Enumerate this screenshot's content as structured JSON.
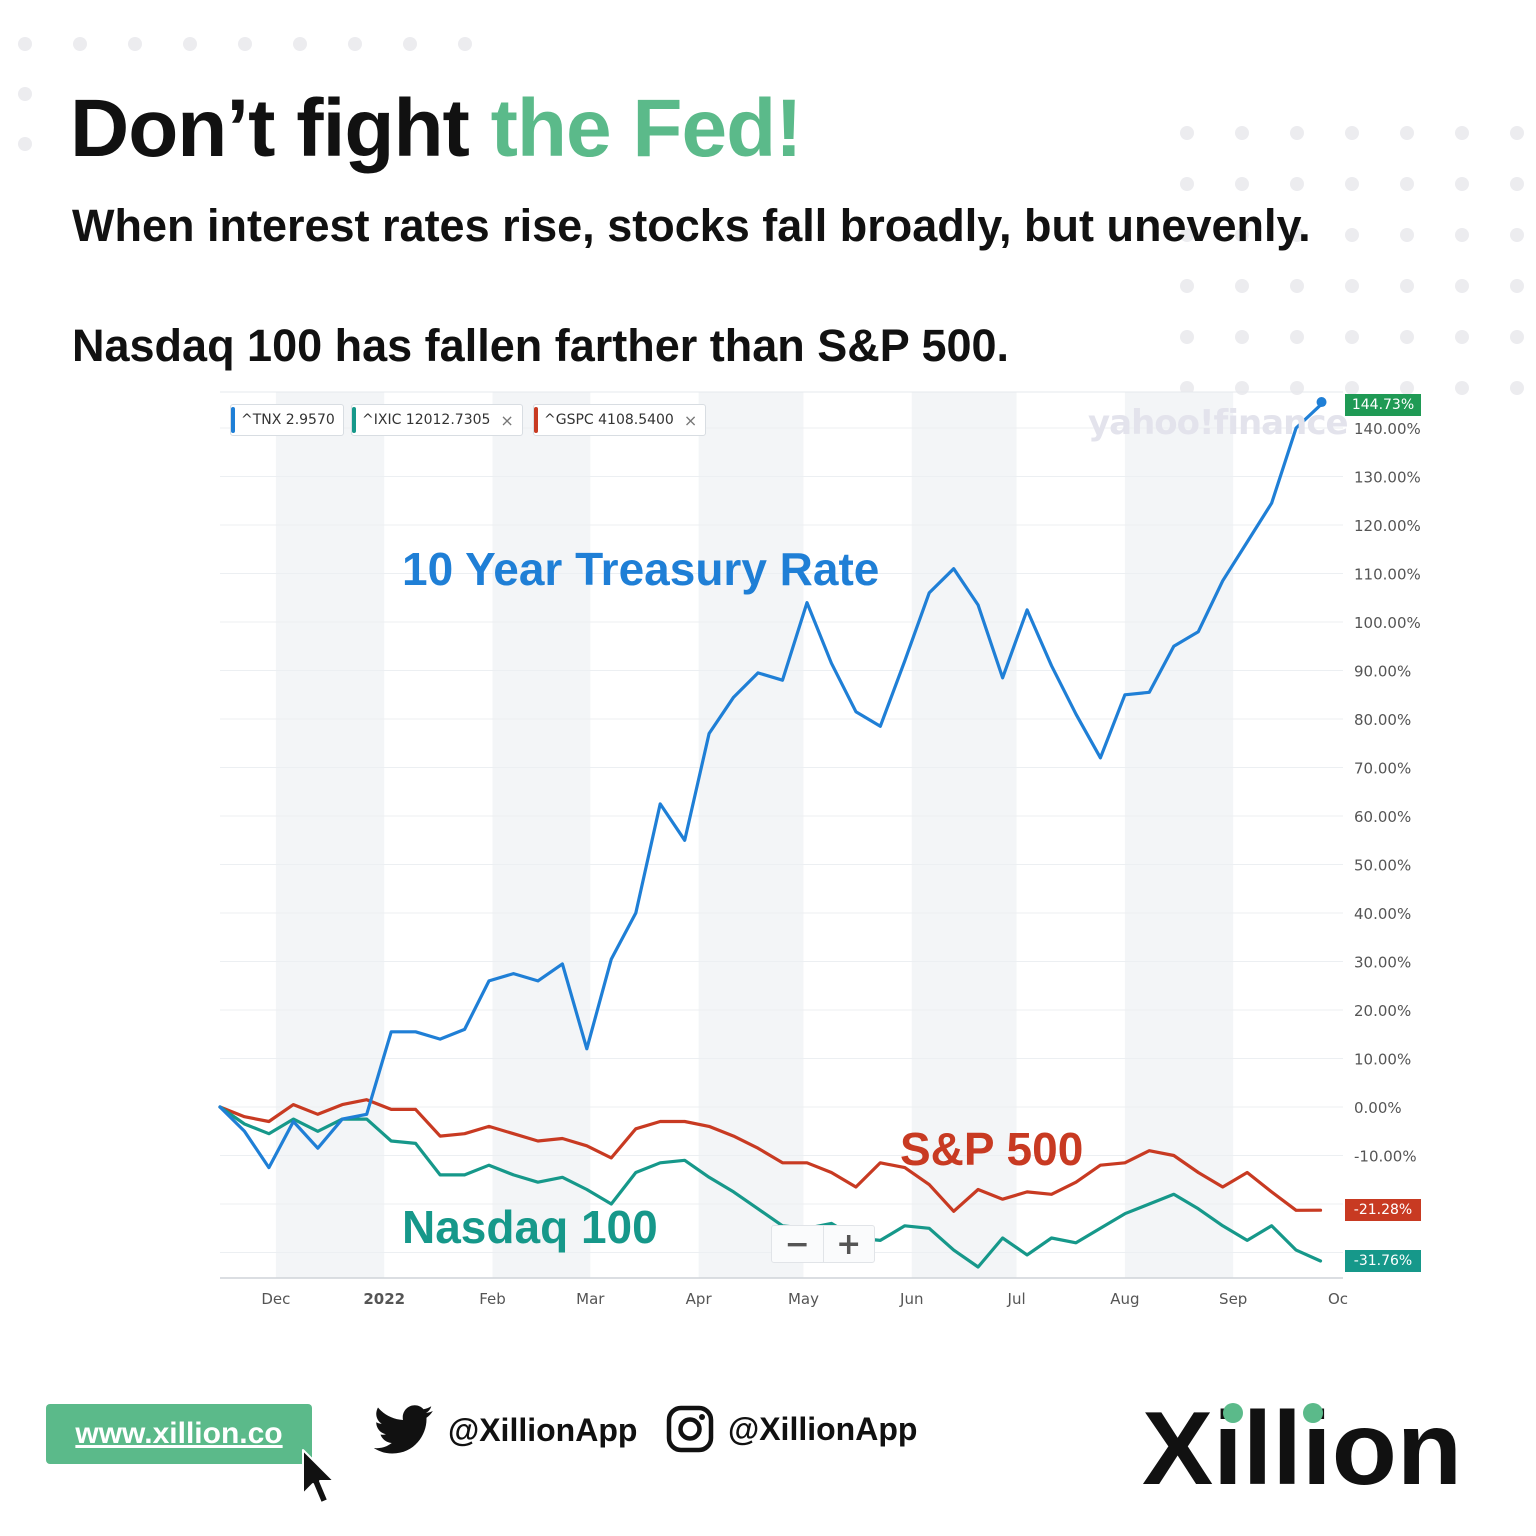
{
  "header": {
    "title_part1": "Don’t fight ",
    "title_accent": "the Fed!",
    "subtitle1": "When interest rates rise, stocks fall broadly, but unevenly.",
    "subtitle2": "Nasdaq 100 has fallen farther than S&P 500."
  },
  "colors": {
    "brand_green": "#5bba8a",
    "tnx": "#1f7fd6",
    "ixic": "#16988a",
    "gspc": "#c83a22"
  },
  "legend": [
    {
      "symbol": "^TNX",
      "value": "2.9570",
      "removable": false
    },
    {
      "symbol": "^IXIC",
      "value": "12012.7305",
      "removable": true
    },
    {
      "symbol": "^GSPC",
      "value": "4108.5400",
      "removable": true
    }
  ],
  "watermark": "yahoo!finance",
  "annotations": {
    "tnx": "10 Year Treasury Rate",
    "sp": "S&P 500",
    "nq": "Nasdaq 100"
  },
  "zoom": {
    "minus": "−",
    "plus": "+"
  },
  "chart_data": {
    "type": "line",
    "title": "",
    "xlabel": "",
    "ylabel": "",
    "y_unit": "%",
    "ylim": [
      -35,
      150
    ],
    "grid": true,
    "y_ticks": [
      "140.00%",
      "130.00%",
      "120.00%",
      "110.00%",
      "100.00%",
      "90.00%",
      "80.00%",
      "70.00%",
      "60.00%",
      "50.00%",
      "40.00%",
      "30.00%",
      "20.00%",
      "10.00%",
      "0.00%",
      "-10.00%"
    ],
    "x_ticks": [
      {
        "label": "Dec",
        "date": "2021-12-01"
      },
      {
        "label": "2022",
        "date": "2022-01-01"
      },
      {
        "label": "Feb",
        "date": "2022-02-01"
      },
      {
        "label": "Mar",
        "date": "2022-03-01"
      },
      {
        "label": "Apr",
        "date": "2022-04-01"
      },
      {
        "label": "May",
        "date": "2022-05-01"
      },
      {
        "label": "Jun",
        "date": "2022-06-01"
      },
      {
        "label": "Jul",
        "date": "2022-07-01"
      },
      {
        "label": "Aug",
        "date": "2022-08-01"
      },
      {
        "label": "Sep",
        "date": "2022-09-01"
      },
      {
        "label": "Oc",
        "date": "2022-10-01"
      }
    ],
    "x": [
      "2021-11-15",
      "2021-11-22",
      "2021-11-29",
      "2021-12-06",
      "2021-12-13",
      "2021-12-20",
      "2021-12-27",
      "2022-01-03",
      "2022-01-10",
      "2022-01-17",
      "2022-01-24",
      "2022-01-31",
      "2022-02-07",
      "2022-02-14",
      "2022-02-21",
      "2022-02-28",
      "2022-03-07",
      "2022-03-14",
      "2022-03-21",
      "2022-03-28",
      "2022-04-04",
      "2022-04-11",
      "2022-04-18",
      "2022-04-25",
      "2022-05-02",
      "2022-05-09",
      "2022-05-16",
      "2022-05-23",
      "2022-05-30",
      "2022-06-06",
      "2022-06-13",
      "2022-06-20",
      "2022-06-27",
      "2022-07-04",
      "2022-07-11",
      "2022-07-18",
      "2022-07-25",
      "2022-08-01",
      "2022-08-08",
      "2022-08-15",
      "2022-08-22",
      "2022-08-29",
      "2022-09-05",
      "2022-09-12",
      "2022-09-19",
      "2022-09-26"
    ],
    "end_labels": [
      "144.73%",
      "-21.28%",
      "-31.76%"
    ],
    "series": [
      {
        "name": "^TNX",
        "color_key": "tnx",
        "values": [
          0,
          -5,
          -12.5,
          -3,
          -8.5,
          -2.5,
          -1.5,
          15.5,
          15.5,
          14,
          16,
          26,
          27.5,
          26,
          29.5,
          12,
          30.5,
          40,
          62.5,
          55,
          77,
          84.5,
          89.5,
          88,
          104,
          91.5,
          81.5,
          78.5,
          92,
          106,
          111,
          103.5,
          88.5,
          102.5,
          91,
          81,
          72,
          85,
          85.5,
          95,
          98,
          108.5,
          116.5,
          124.5,
          140,
          144.73
        ]
      },
      {
        "name": "^IXIC",
        "color_key": "ixic",
        "values": [
          0,
          -3.5,
          -5.5,
          -2.5,
          -5,
          -2.5,
          -2.5,
          -7,
          -7.5,
          -14,
          -14,
          -12,
          -14,
          -15.5,
          -14.5,
          -17,
          -20,
          -13.5,
          -11.5,
          -11,
          -14.5,
          -17.5,
          -21,
          -24.5,
          -25,
          -24,
          -27,
          -27.5,
          -24.5,
          -25,
          -29.5,
          -33,
          -27,
          -30.5,
          -27,
          -28,
          -25,
          -22,
          -20,
          -18,
          -21,
          -24.5,
          -27.5,
          -24.5,
          -29.5,
          -31.76
        ]
      },
      {
        "name": "^GSPC",
        "color_key": "gspc",
        "values": [
          0,
          -2,
          -3,
          0.5,
          -1.5,
          0.5,
          1.5,
          -0.5,
          -0.5,
          -6,
          -5.5,
          -4,
          -5.5,
          -7,
          -6.5,
          -8,
          -10.5,
          -4.5,
          -3,
          -3,
          -4,
          -6,
          -8.5,
          -11.5,
          -11.5,
          -13.5,
          -16.5,
          -11.5,
          -12.5,
          -16,
          -21.5,
          -17,
          -19,
          -17.5,
          -18,
          -15.5,
          -12,
          -11.5,
          -9,
          -10,
          -13.5,
          -16.5,
          -13.5,
          -17.5,
          -21.3,
          -21.28
        ]
      }
    ]
  },
  "footer": {
    "url": "www.xillion.co",
    "twitter_handle": "@XillionApp",
    "instagram_handle": "@XillionApp",
    "logo_text": "Xillion"
  }
}
